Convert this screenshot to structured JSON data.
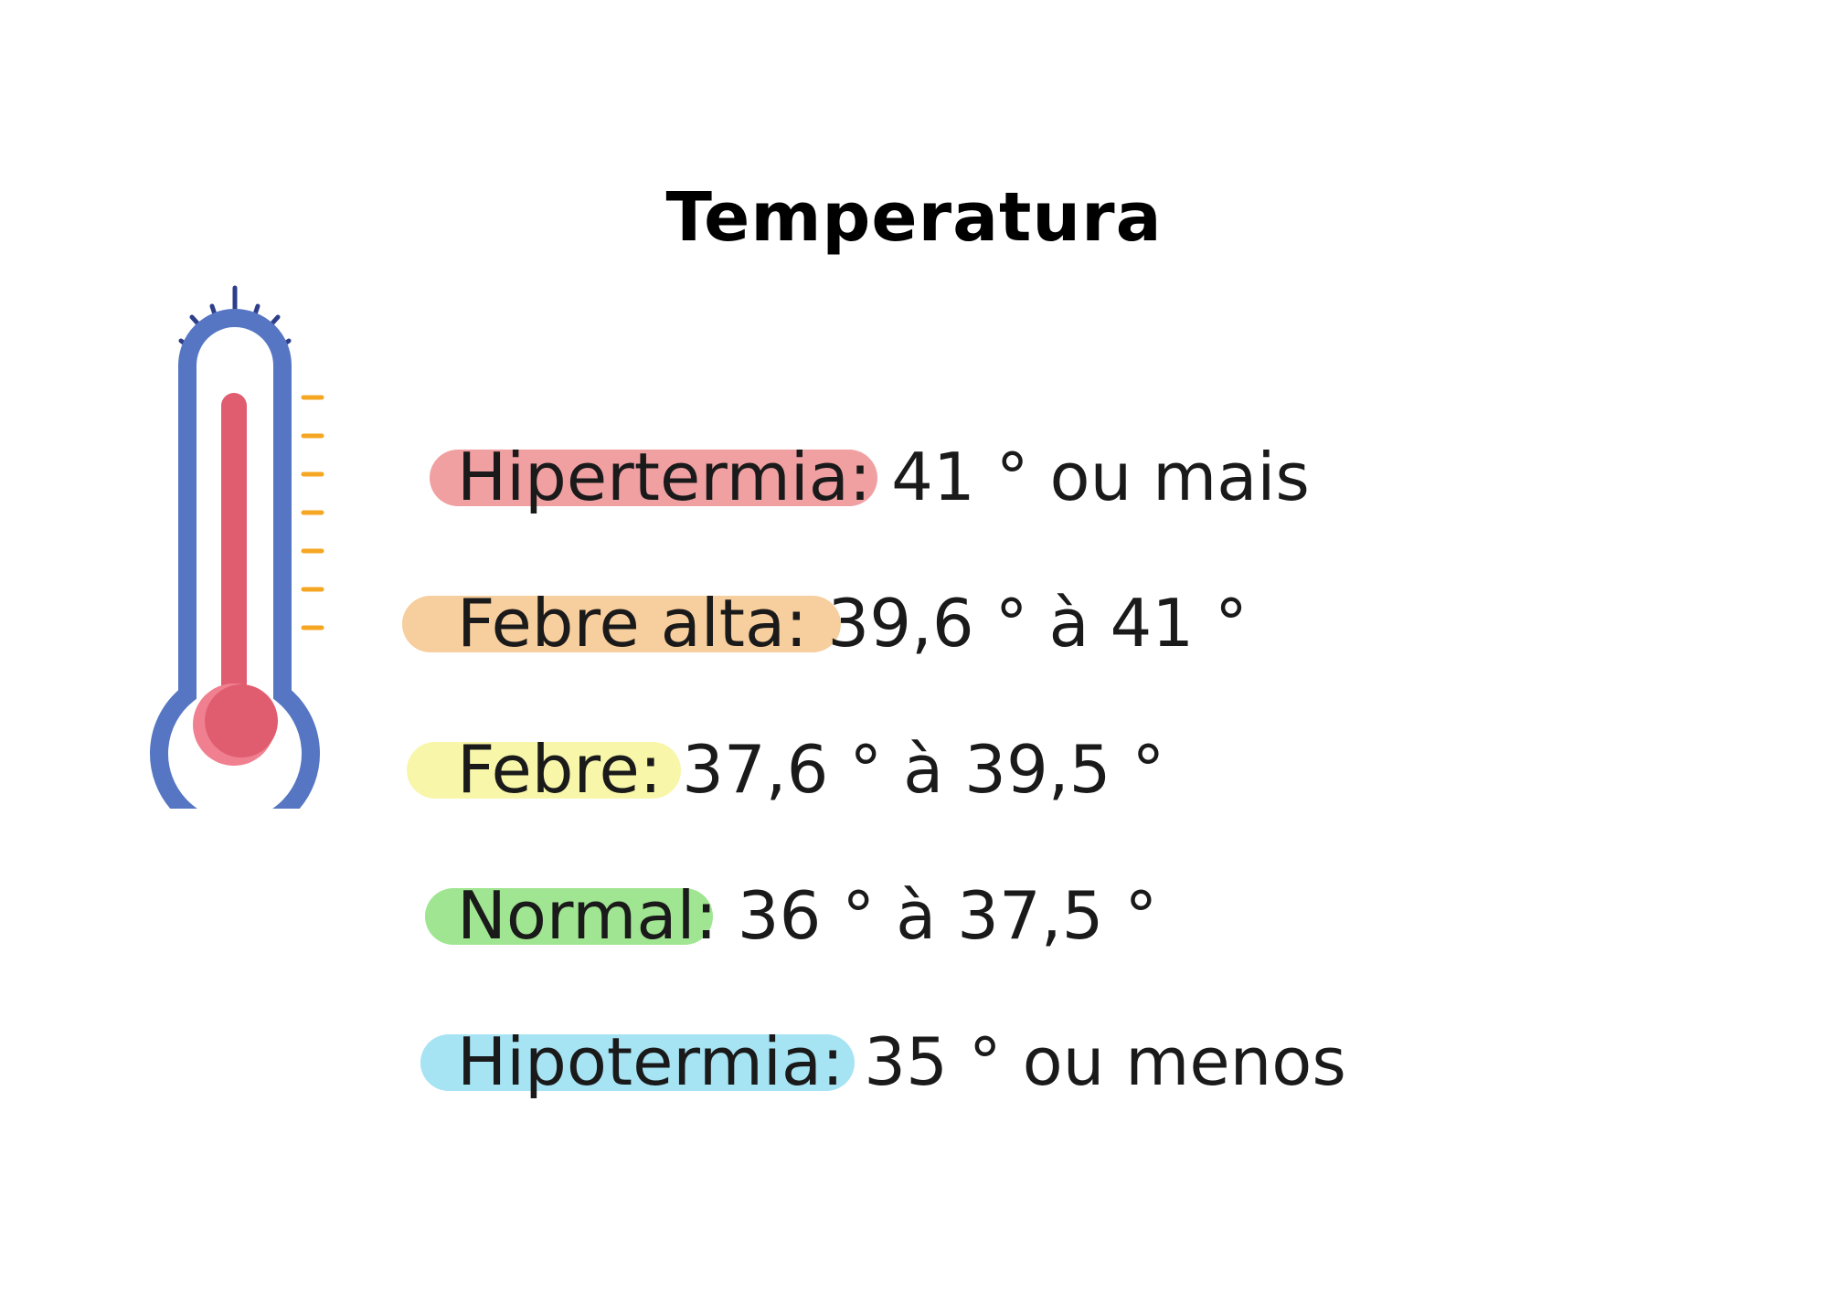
{
  "title": "Temperatura",
  "thermometer_icon": {
    "outline_color": "#5676c4",
    "fill_color": "#e05d6f",
    "tick_color": "#f5a623",
    "ray_color": "#2e3f8a"
  },
  "rows": [
    {
      "label": "Hipertermia:",
      "value": "41 ° ou mais",
      "color": "#ef8f92"
    },
    {
      "label": "Febre alta:",
      "value": "39,6 ° à 41 °",
      "color": "#f6c58c"
    },
    {
      "label": "Febre:",
      "value": "37,6 ° à 39,5 °",
      "color": "#f7f59a"
    },
    {
      "label": "Normal:",
      "value": "36 ° à 37,5 °",
      "color": "#8fe07e"
    },
    {
      "label": "Hipotermia:",
      "value": "35 ° ou menos",
      "color": "#97def1"
    }
  ]
}
